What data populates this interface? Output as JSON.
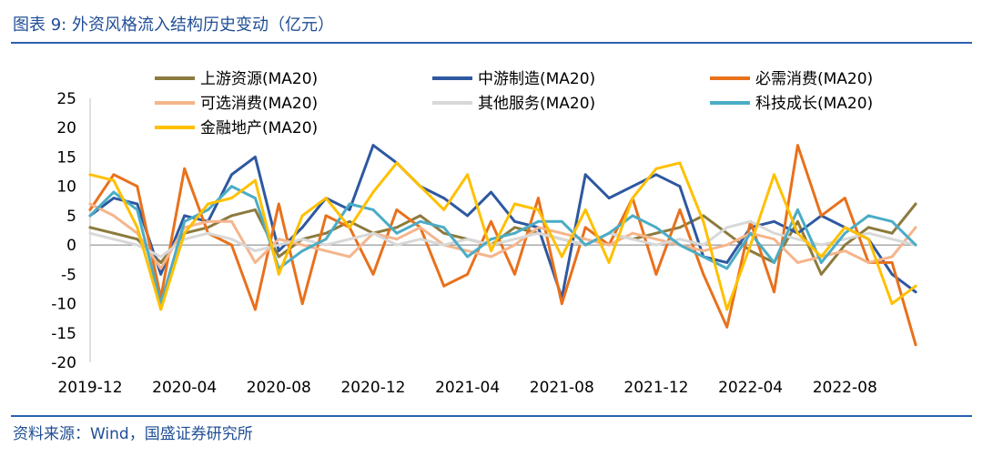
{
  "header": {
    "title": "图表 9:  外资风格流入结构历史变动（亿元）"
  },
  "footer": {
    "source": "资料来源：Wind，国盛证券研究所"
  },
  "chart_data": {
    "type": "line",
    "title": "图表 9:  外资风格流入结构历史变动（亿元）",
    "xlabel": "",
    "ylabel": "",
    "ylim": [
      -20,
      25
    ],
    "yticks": [
      25,
      20,
      15,
      10,
      5,
      0,
      -5,
      -10,
      -15,
      -20
    ],
    "x_tick_labels": [
      "2019-12",
      "2020-04",
      "2020-08",
      "2020-12",
      "2021-04",
      "2021-08",
      "2021-12",
      "2022-04",
      "2022-08"
    ],
    "x": [
      "2019-12",
      "2020-01",
      "2020-02",
      "2020-03",
      "2020-04",
      "2020-05",
      "2020-06",
      "2020-07",
      "2020-08",
      "2020-09",
      "2020-10",
      "2020-11",
      "2020-12",
      "2021-01",
      "2021-02",
      "2021-03",
      "2021-04",
      "2021-05",
      "2021-06",
      "2021-07",
      "2021-08",
      "2021-09",
      "2021-10",
      "2021-11",
      "2021-12",
      "2022-01",
      "2022-02",
      "2022-03",
      "2022-04",
      "2022-05",
      "2022-06",
      "2022-07",
      "2022-08",
      "2022-09",
      "2022-10",
      "2022-11"
    ],
    "legend_position": "top",
    "series": [
      {
        "name": "上游资源(MA20)",
        "color": "#8c7b3e",
        "values": [
          3,
          2,
          1,
          -3,
          2,
          3,
          5,
          6,
          -2,
          1,
          2,
          4,
          2,
          3,
          5,
          2,
          1,
          0,
          3,
          2,
          1,
          0,
          2,
          1,
          2,
          3,
          5,
          2,
          -1,
          -3,
          4,
          -5,
          0,
          3,
          2,
          7
        ]
      },
      {
        "name": "中游制造(MA20)",
        "color": "#2e58a0",
        "values": [
          5,
          8,
          7,
          -5,
          5,
          4,
          12,
          15,
          -1,
          3,
          8,
          6,
          17,
          14,
          10,
          8,
          5,
          9,
          4,
          3,
          -9,
          12,
          8,
          10,
          12,
          10,
          -2,
          -3,
          3,
          4,
          2,
          5,
          3,
          1,
          -5,
          -8
        ]
      },
      {
        "name": "必需消费(MA20)",
        "color": "#e8711c",
        "values": [
          6,
          12,
          10,
          -9,
          13,
          2,
          0,
          -11,
          7,
          -10,
          5,
          3,
          -5,
          6,
          3,
          -7,
          -5,
          4,
          -5,
          8,
          -10,
          3,
          0,
          8,
          -5,
          6,
          -5,
          -14,
          4,
          -8,
          17,
          5,
          8,
          -3,
          -3,
          -17
        ]
      },
      {
        "name": "可选消费(MA20)",
        "color": "#f5b58c",
        "values": [
          7,
          5,
          2,
          -4,
          3,
          4,
          4,
          -3,
          1,
          0,
          -1,
          -2,
          2,
          1,
          3,
          0,
          -1,
          -2,
          0,
          3,
          2,
          1,
          0,
          2,
          1,
          0,
          -1,
          0,
          2,
          1,
          -3,
          -2,
          -1,
          -3,
          -2,
          3
        ]
      },
      {
        "name": "其他服务(MA20)",
        "color": "#d8d8d8",
        "values": [
          2,
          1,
          0,
          -2,
          1,
          2,
          1,
          -1,
          0,
          1,
          0,
          1,
          2,
          0,
          1,
          0,
          1,
          0,
          1,
          2,
          1,
          0,
          2,
          1,
          0,
          1,
          0,
          3,
          4,
          2,
          1,
          0,
          1,
          2,
          1,
          0
        ]
      },
      {
        "name": "科技成长(MA20)",
        "color": "#4bacc6",
        "values": [
          5,
          9,
          6,
          -10,
          4,
          6,
          10,
          8,
          -4,
          -1,
          1,
          7,
          6,
          2,
          4,
          3,
          -2,
          1,
          2,
          4,
          4,
          0,
          2,
          5,
          3,
          0,
          -2,
          -4,
          2,
          -3,
          6,
          -3,
          2,
          5,
          4,
          0
        ]
      },
      {
        "name": "金融地产(MA20)",
        "color": "#ffc000",
        "values": [
          12,
          11,
          3,
          -11,
          2,
          7,
          8,
          11,
          -5,
          5,
          8,
          3,
          9,
          14,
          10,
          6,
          12,
          -1,
          7,
          6,
          -2,
          6,
          -3,
          8,
          13,
          14,
          4,
          -11,
          0,
          12,
          2,
          -2,
          3,
          1,
          -10,
          -7
        ]
      }
    ]
  }
}
